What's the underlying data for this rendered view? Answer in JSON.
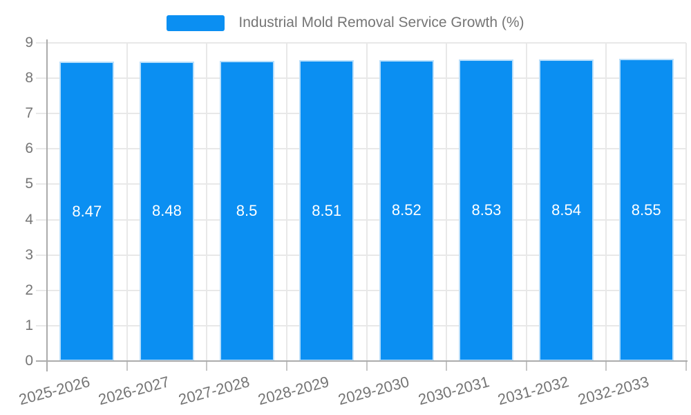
{
  "chart_data": {
    "type": "bar",
    "title": "Industrial Mold Removal Service Growth (%)",
    "categories": [
      "2025-2026",
      "2026-2027",
      "2027-2028",
      "2028-2029",
      "2029-2030",
      "2030-2031",
      "2031-2032",
      "2032-2033"
    ],
    "series": [
      {
        "name": "Industrial Mold Removal Service Growth (%)",
        "values": [
          8.47,
          8.48,
          8.5,
          8.51,
          8.52,
          8.53,
          8.54,
          8.55
        ]
      }
    ],
    "xlabel": "",
    "ylabel": "",
    "ylim": [
      0,
      9
    ],
    "ytick_step": 1,
    "yticks": [
      0,
      1,
      2,
      3,
      4,
      5,
      6,
      7,
      8,
      9
    ],
    "grid": true,
    "legend_position": "top",
    "bar_value_labels_visible": true,
    "x_label_rotation_deg": -15,
    "colors": {
      "bar_fill": "#0B8FF2",
      "bar_border": "#B9DFFB",
      "bar_label_text": "#FFFFFF",
      "axis_text": "#757575",
      "axis_line": "#ABABAB",
      "gridline": "#E8E8E8",
      "tick": "#C6C6C6",
      "background": "#FFFFFF"
    }
  }
}
